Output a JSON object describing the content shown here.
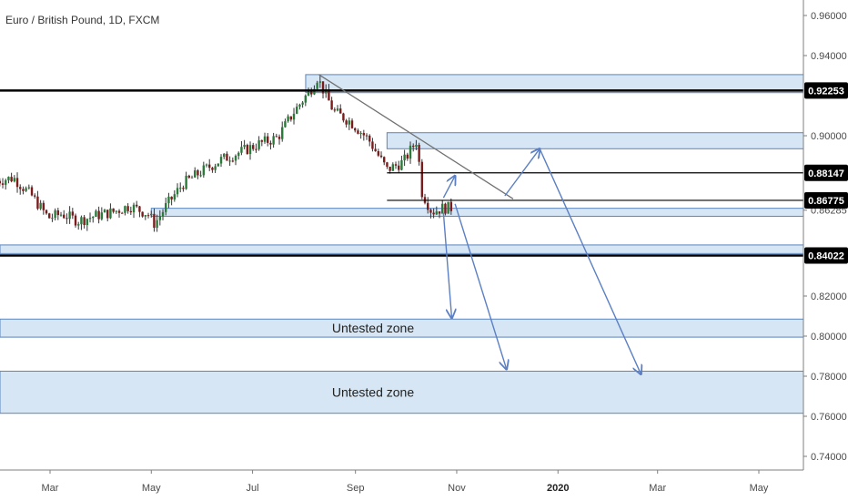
{
  "chart_data": {
    "type": "candlestick",
    "title": "Euro / British Pound, 1D, FXCM",
    "y_axis_ticks": [
      "0.96000",
      "0.94000",
      "0.90000",
      "0.86285",
      "0.82000",
      "0.80000",
      "0.78000",
      "0.76000",
      "0.74000"
    ],
    "y_axis_tick_values": [
      0.96,
      0.94,
      0.9,
      0.86285,
      0.82,
      0.8,
      0.78,
      0.76,
      0.74
    ],
    "x_axis_ticks": [
      "Mar",
      "May",
      "Jul",
      "Sep",
      "Nov",
      "2020",
      "Mar",
      "May"
    ],
    "x_axis_tick_dates": [
      "2019-03-01",
      "2019-05-01",
      "2019-07-01",
      "2019-09-01",
      "2019-11-01",
      "2020-01-01",
      "2020-03-01",
      "2020-05-01"
    ],
    "x_bold_tick": "2020",
    "ylim": [
      0.74,
      0.965
    ],
    "xlim": [
      "2019-01-25",
      "2020-05-25"
    ],
    "price_levels": [
      {
        "label": "0.92253",
        "value": 0.92253,
        "style": "thick"
      },
      {
        "label": "0.88147",
        "value": 0.88147,
        "style": "thin",
        "start": "2019-09-20"
      },
      {
        "label": "0.86775",
        "value": 0.86775,
        "style": "thin",
        "start": "2019-09-20"
      },
      {
        "label": "0.84022",
        "value": 0.84022,
        "style": "thick"
      }
    ],
    "zones": [
      {
        "label": "",
        "y_low": 0.9215,
        "y_high": 0.9305,
        "start": "2019-08-02"
      },
      {
        "label": "",
        "y_low": 0.8935,
        "y_high": 0.9015,
        "start": "2019-09-20"
      },
      {
        "label": "",
        "y_low": 0.8598,
        "y_high": 0.8638,
        "start": "2019-05-01"
      },
      {
        "label": "",
        "y_low": 0.8412,
        "y_high": 0.8455,
        "start": "2019-01-25"
      },
      {
        "label": "Untested zone",
        "y_low": 0.7995,
        "y_high": 0.8085,
        "start": "2019-01-25"
      },
      {
        "label": "Untested zone",
        "y_low": 0.7615,
        "y_high": 0.7825,
        "start": "2019-01-25"
      }
    ],
    "trendline": {
      "start": {
        "x": "2019-08-10",
        "y": 0.9305
      },
      "end": {
        "x": "2019-12-05",
        "y": 0.8685
      }
    },
    "projection_arrows": [
      {
        "from": {
          "x": "2019-10-24",
          "y": 0.8615
        },
        "to": {
          "x": "2019-10-29",
          "y": 0.809
        }
      },
      {
        "from": {
          "x": "2019-10-24",
          "y": 0.869
        },
        "to": {
          "x": "2019-10-31",
          "y": 0.88
        }
      },
      {
        "from": {
          "x": "2019-10-31",
          "y": 0.866
        },
        "to": {
          "x": "2019-12-01",
          "y": 0.7835
        }
      },
      {
        "from": {
          "x": "2019-11-30",
          "y": 0.87
        },
        "to": {
          "x": "2019-12-21",
          "y": 0.8935
        }
      },
      {
        "from": {
          "x": "2019-12-21",
          "y": 0.8935
        },
        "to": {
          "x": "2020-02-20",
          "y": 0.781
        }
      }
    ],
    "candles": [
      {
        "x": "2019-01-28",
        "y": 0.8775
      },
      {
        "x": "2019-02-07",
        "y": 0.879
      },
      {
        "x": "2019-02-18",
        "y": 0.87
      },
      {
        "x": "2019-02-28",
        "y": 0.859
      },
      {
        "x": "2019-03-08",
        "y": 0.861
      },
      {
        "x": "2019-03-18",
        "y": 0.8575
      },
      {
        "x": "2019-03-28",
        "y": 0.86
      },
      {
        "x": "2019-04-08",
        "y": 0.862
      },
      {
        "x": "2019-04-18",
        "y": 0.865
      },
      {
        "x": "2019-04-29",
        "y": 0.861
      },
      {
        "x": "2019-05-03",
        "y": 0.856
      },
      {
        "x": "2019-05-10",
        "y": 0.865
      },
      {
        "x": "2019-05-20",
        "y": 0.876
      },
      {
        "x": "2019-05-31",
        "y": 0.882
      },
      {
        "x": "2019-06-12",
        "y": 0.888
      },
      {
        "x": "2019-06-24",
        "y": 0.892
      },
      {
        "x": "2019-07-05",
        "y": 0.896
      },
      {
        "x": "2019-07-16",
        "y": 0.899
      },
      {
        "x": "2019-07-26",
        "y": 0.912
      },
      {
        "x": "2019-08-05",
        "y": 0.923
      },
      {
        "x": "2019-08-09",
        "y": 0.929
      },
      {
        "x": "2019-08-19",
        "y": 0.912
      },
      {
        "x": "2019-08-29",
        "y": 0.907
      },
      {
        "x": "2019-09-09",
        "y": 0.898
      },
      {
        "x": "2019-09-20",
        "y": 0.883
      },
      {
        "x": "2019-09-30",
        "y": 0.887
      },
      {
        "x": "2019-10-08",
        "y": 0.898
      },
      {
        "x": "2019-10-11",
        "y": 0.872
      },
      {
        "x": "2019-10-17",
        "y": 0.862
      },
      {
        "x": "2019-10-24",
        "y": 0.864
      }
    ]
  }
}
